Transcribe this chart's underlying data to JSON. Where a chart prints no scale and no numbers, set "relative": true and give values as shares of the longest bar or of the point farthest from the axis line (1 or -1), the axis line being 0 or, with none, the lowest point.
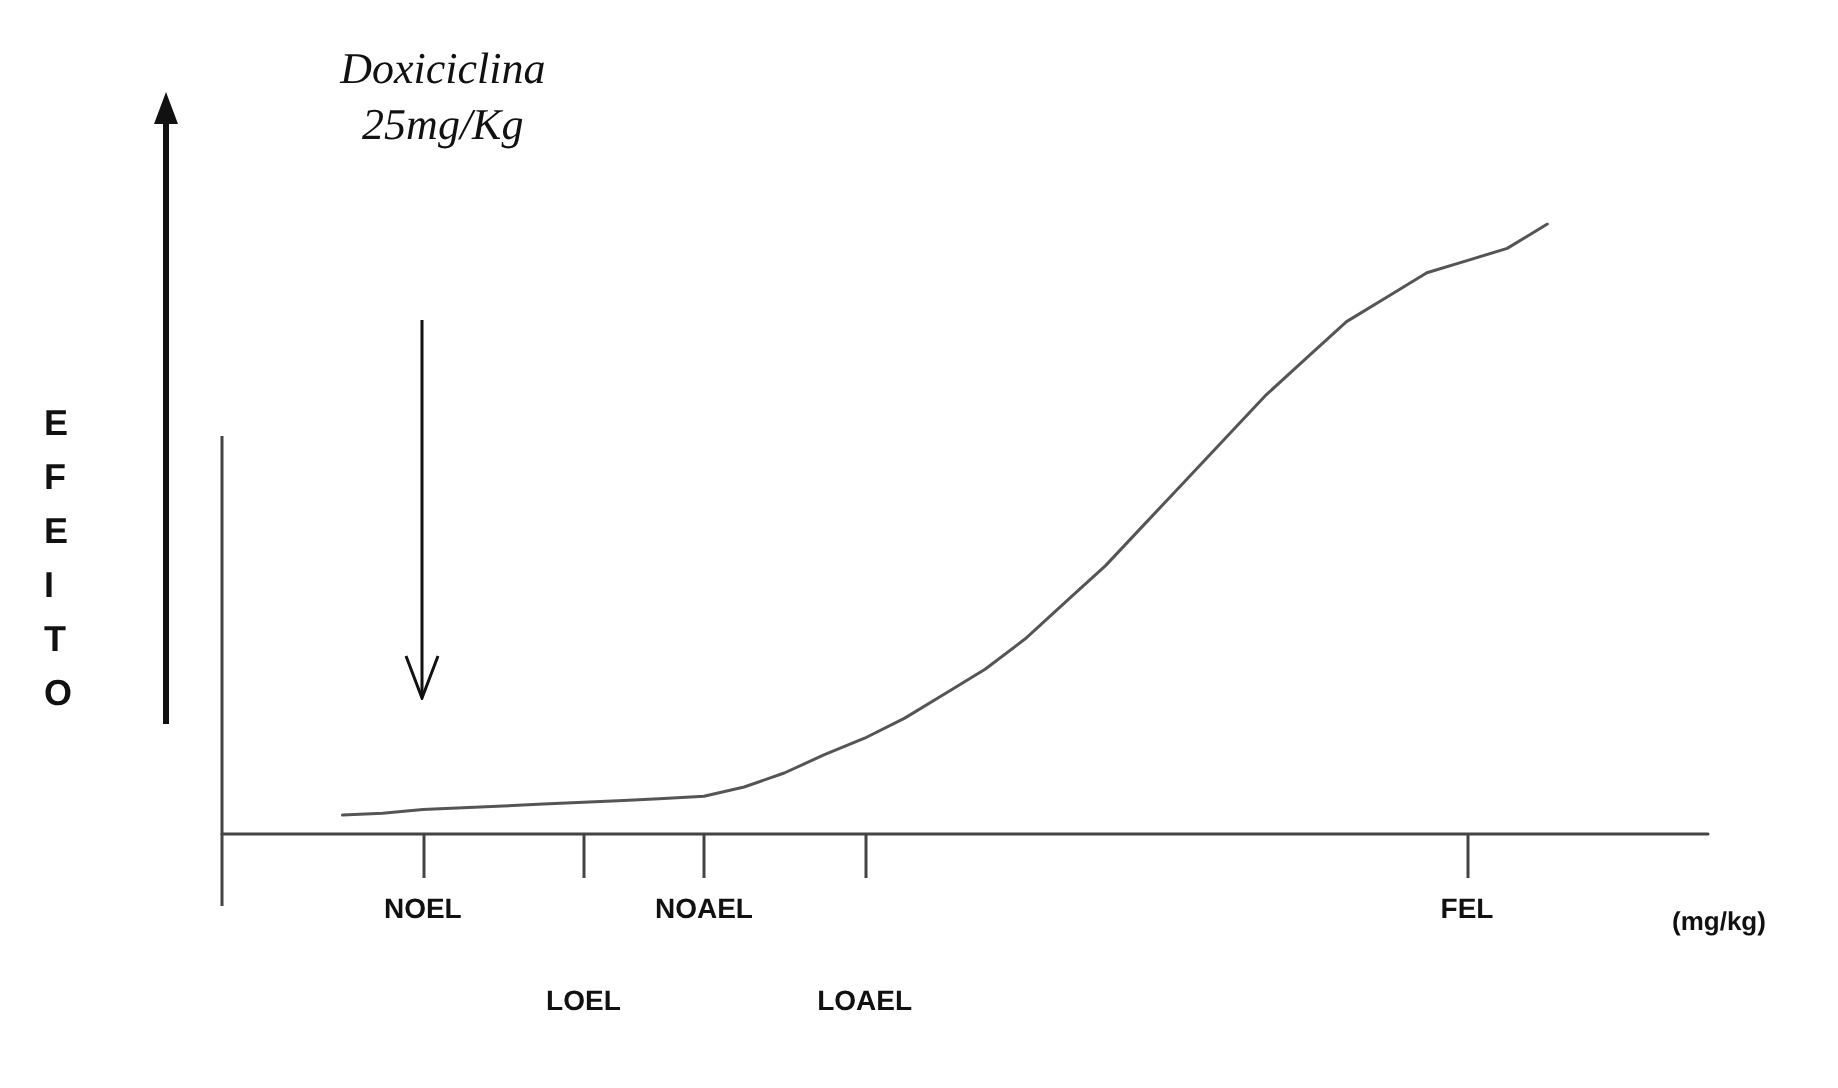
{
  "chart_data": {
    "type": "line",
    "relative": true,
    "ylabel": "EFEITO",
    "xlabel": "(mg/kg)",
    "categories": [
      null,
      null,
      null,
      null,
      null,
      "NOEL",
      null,
      null,
      null,
      "LOEL",
      null,
      null,
      "NOAEL",
      null,
      null,
      null,
      "LOAEL",
      null,
      null,
      null,
      null,
      null,
      null,
      null,
      null,
      null,
      null,
      null,
      null,
      null,
      null,
      "FEL",
      null,
      null,
      null,
      null,
      null,
      null
    ],
    "series": [
      {
        "color": "#555555",
        "values": [
          null,
          null,
          null,
          0.031,
          0.034,
          0.04,
          0.043,
          0.046,
          0.049,
          0.052,
          0.055,
          0.058,
          0.062,
          0.077,
          0.1,
          0.13,
          0.157,
          0.19,
          0.23,
          0.27,
          0.32,
          0.38,
          0.44,
          0.51,
          0.58,
          0.65,
          0.72,
          0.78,
          0.84,
          0.88,
          0.92,
          0.94,
          0.96,
          1,
          null,
          null,
          null,
          null
        ]
      }
    ],
    "annotations": [
      "Doxiciclina\n25mg/Kg"
    ],
    "marker": "none",
    "line_style": "solid",
    "grid": false
  }
}
